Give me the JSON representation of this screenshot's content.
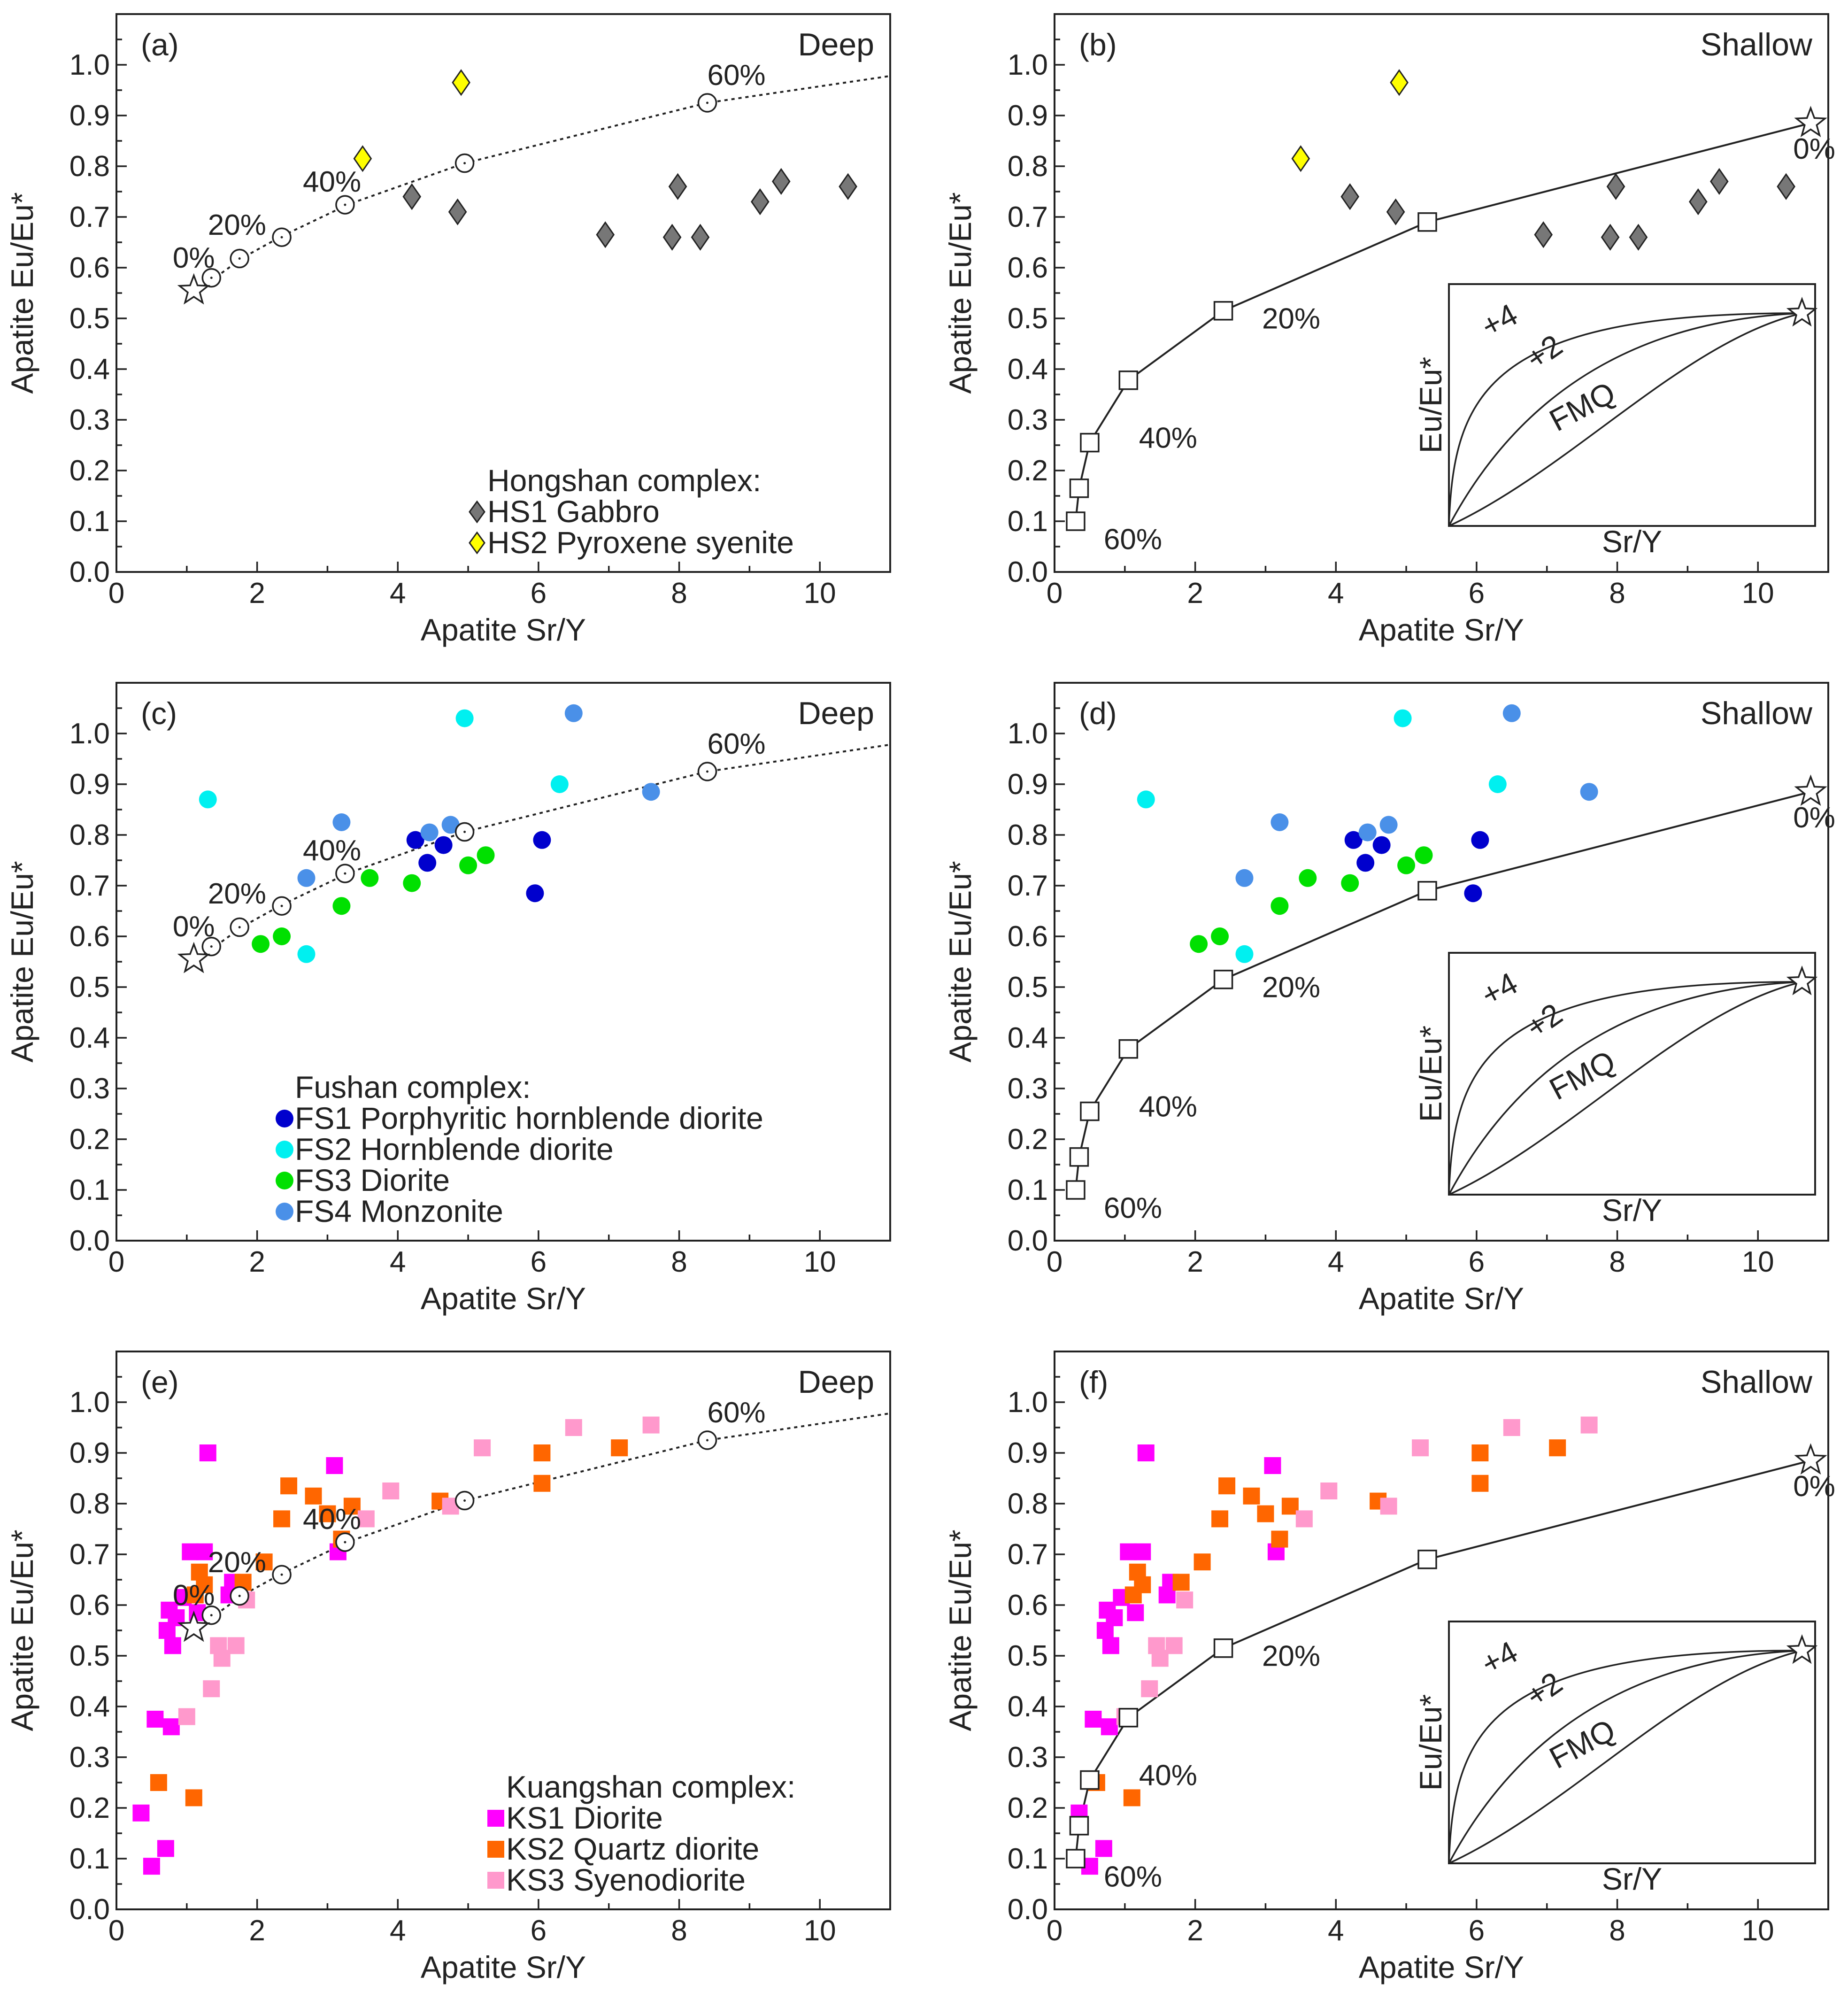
{
  "panels": [
    {
      "letter": "(a)",
      "tag": "Deep",
      "model": "deep",
      "xlabel": "Apatite Sr/Y",
      "ylabel": "Apatite Eu/Eu*",
      "xlim": [
        0,
        11
      ],
      "ylim": [
        0,
        1.1
      ],
      "legend_title": "Hongshan complex:",
      "legend_pos": "bottom-right",
      "groups": [
        {
          "name": "HS1 Gabbro",
          "marker": "diamond",
          "color": "#777777",
          "points": [
            [
              4.2,
              0.74
            ],
            [
              4.85,
              0.71
            ],
            [
              6.95,
              0.665
            ],
            [
              7.9,
              0.66
            ],
            [
              7.98,
              0.76
            ],
            [
              8.3,
              0.66
            ],
            [
              9.15,
              0.73
            ],
            [
              9.45,
              0.77
            ],
            [
              10.4,
              0.76
            ]
          ]
        },
        {
          "name": "HS2 Pyroxene syenite",
          "marker": "diamond",
          "color": "#ffff00",
          "points": [
            [
              3.5,
              0.815
            ],
            [
              4.9,
              0.965
            ]
          ]
        }
      ]
    },
    {
      "letter": "(b)",
      "tag": "Shallow",
      "model": "shallow",
      "xlabel": "Apatite Sr/Y",
      "ylabel": "Apatite Eu/Eu*",
      "xlim": [
        0,
        11
      ],
      "ylim": [
        0,
        1.1
      ],
      "legend_title": "",
      "legend_pos": "",
      "groups": [
        {
          "name": "HS1 Gabbro",
          "marker": "diamond",
          "color": "#777777",
          "points": [
            [
              4.2,
              0.74
            ],
            [
              4.85,
              0.71
            ],
            [
              6.95,
              0.665
            ],
            [
              7.9,
              0.66
            ],
            [
              7.98,
              0.76
            ],
            [
              8.3,
              0.66
            ],
            [
              9.15,
              0.73
            ],
            [
              9.45,
              0.77
            ],
            [
              10.4,
              0.76
            ]
          ]
        },
        {
          "name": "HS2 Pyroxene syenite",
          "marker": "diamond",
          "color": "#ffff00",
          "points": [
            [
              3.5,
              0.815
            ],
            [
              4.9,
              0.965
            ]
          ]
        }
      ]
    },
    {
      "letter": "(c)",
      "tag": "Deep",
      "model": "deep",
      "xlabel": "Apatite Sr/Y",
      "ylabel": "Apatite Eu/Eu*",
      "xlim": [
        0,
        11
      ],
      "ylim": [
        0,
        1.1
      ],
      "legend_title": "Fushan complex:",
      "legend_pos": "bottom-center",
      "groups": [
        {
          "name": "FS1 Porphyritic hornblende diorite",
          "marker": "circle",
          "color": "#0000cd",
          "points": [
            [
              4.25,
              0.79
            ],
            [
              4.42,
              0.745
            ],
            [
              4.65,
              0.78
            ],
            [
              5.95,
              0.685
            ],
            [
              6.05,
              0.79
            ]
          ]
        },
        {
          "name": "FS2 Hornblende diorite",
          "marker": "circle",
          "color": "#00f0f0",
          "points": [
            [
              1.3,
              0.87
            ],
            [
              2.7,
              0.565
            ],
            [
              4.95,
              1.03
            ],
            [
              6.3,
              0.9
            ]
          ]
        },
        {
          "name": "FS3 Diorite",
          "marker": "circle",
          "color": "#00e000",
          "points": [
            [
              2.05,
              0.585
            ],
            [
              2.35,
              0.6
            ],
            [
              3.2,
              0.66
            ],
            [
              3.6,
              0.715
            ],
            [
              4.2,
              0.705
            ],
            [
              5.0,
              0.74
            ],
            [
              5.25,
              0.76
            ]
          ]
        },
        {
          "name": "FS4 Monzonite",
          "marker": "circle",
          "color": "#4a90e8",
          "points": [
            [
              2.7,
              0.715
            ],
            [
              3.2,
              0.825
            ],
            [
              4.45,
              0.805
            ],
            [
              4.75,
              0.82
            ],
            [
              6.5,
              1.04
            ],
            [
              7.6,
              0.885
            ]
          ]
        }
      ]
    },
    {
      "letter": "(d)",
      "tag": "Shallow",
      "model": "shallow",
      "xlabel": "Apatite Sr/Y",
      "ylabel": "Apatite Eu/Eu*",
      "xlim": [
        0,
        11
      ],
      "ylim": [
        0,
        1.1
      ],
      "legend_title": "",
      "legend_pos": "",
      "groups": [
        {
          "name": "FS1 Porphyritic hornblende diorite",
          "marker": "circle",
          "color": "#0000cd",
          "points": [
            [
              4.25,
              0.79
            ],
            [
              4.42,
              0.745
            ],
            [
              4.65,
              0.78
            ],
            [
              5.95,
              0.685
            ],
            [
              6.05,
              0.79
            ]
          ]
        },
        {
          "name": "FS2 Hornblende diorite",
          "marker": "circle",
          "color": "#00f0f0",
          "points": [
            [
              1.3,
              0.87
            ],
            [
              2.7,
              0.565
            ],
            [
              4.95,
              1.03
            ],
            [
              6.3,
              0.9
            ]
          ]
        },
        {
          "name": "FS3 Diorite",
          "marker": "circle",
          "color": "#00e000",
          "points": [
            [
              2.05,
              0.585
            ],
            [
              2.35,
              0.6
            ],
            [
              3.2,
              0.66
            ],
            [
              3.6,
              0.715
            ],
            [
              4.2,
              0.705
            ],
            [
              5.0,
              0.74
            ],
            [
              5.25,
              0.76
            ]
          ]
        },
        {
          "name": "FS4 Monzonite",
          "marker": "circle",
          "color": "#4a90e8",
          "points": [
            [
              2.7,
              0.715
            ],
            [
              3.2,
              0.825
            ],
            [
              4.45,
              0.805
            ],
            [
              4.75,
              0.82
            ],
            [
              6.5,
              1.04
            ],
            [
              7.6,
              0.885
            ]
          ]
        }
      ]
    },
    {
      "letter": "(e)",
      "tag": "Deep",
      "model": "deep",
      "xlabel": "Apatite Sr/Y",
      "ylabel": "Apatite Eu/Eu*",
      "xlim": [
        0,
        11
      ],
      "ylim": [
        0,
        1.1
      ],
      "legend_title": "Kuangshan complex:",
      "legend_pos": "bottom-right",
      "groups": [
        {
          "name": "KS1 Diorite",
          "marker": "square",
          "color": "#ff00ff",
          "points": [
            [
              0.35,
              0.19
            ],
            [
              0.5,
              0.085
            ],
            [
              0.55,
              0.375
            ],
            [
              0.7,
              0.12
            ],
            [
              0.72,
              0.55
            ],
            [
              0.75,
              0.59
            ],
            [
              0.78,
              0.36
            ],
            [
              0.8,
              0.52
            ],
            [
              0.85,
              0.575
            ],
            [
              0.95,
              0.615
            ],
            [
              1.05,
              0.705
            ],
            [
              1.15,
              0.585
            ],
            [
              1.25,
              0.705
            ],
            [
              1.3,
              0.9
            ],
            [
              1.6,
              0.62
            ],
            [
              1.65,
              0.645
            ],
            [
              3.1,
              0.875
            ],
            [
              3.15,
              0.705
            ]
          ]
        },
        {
          "name": "KS2 Quartz diorite",
          "marker": "square",
          "color": "#ff6600",
          "points": [
            [
              0.6,
              0.25
            ],
            [
              1.1,
              0.22
            ],
            [
              1.12,
              0.62
            ],
            [
              1.18,
              0.665
            ],
            [
              1.25,
              0.64
            ],
            [
              1.8,
              0.645
            ],
            [
              2.1,
              0.685
            ],
            [
              2.35,
              0.77
            ],
            [
              2.45,
              0.835
            ],
            [
              2.8,
              0.815
            ],
            [
              3.0,
              0.78
            ],
            [
              3.35,
              0.795
            ],
            [
              3.2,
              0.73
            ],
            [
              4.6,
              0.805
            ],
            [
              6.05,
              0.84
            ],
            [
              6.05,
              0.9
            ],
            [
              7.15,
              0.91
            ]
          ]
        },
        {
          "name": "KS3 Syenodiorite",
          "marker": "square",
          "color": "#ff99cc",
          "points": [
            [
              1.0,
              0.38
            ],
            [
              1.35,
              0.435
            ],
            [
              1.45,
              0.52
            ],
            [
              1.5,
              0.495
            ],
            [
              1.7,
              0.52
            ],
            [
              1.85,
              0.61
            ],
            [
              3.55,
              0.77
            ],
            [
              3.9,
              0.825
            ],
            [
              4.75,
              0.795
            ],
            [
              5.2,
              0.91
            ],
            [
              6.5,
              0.95
            ],
            [
              7.6,
              0.955
            ]
          ]
        }
      ]
    },
    {
      "letter": "(f)",
      "tag": "Shallow",
      "model": "shallow",
      "xlabel": "Apatite Sr/Y",
      "ylabel": "Apatite Eu/Eu*",
      "xlim": [
        0,
        11
      ],
      "ylim": [
        0,
        1.1
      ],
      "legend_title": "",
      "legend_pos": "",
      "groups": [
        {
          "name": "KS1 Diorite",
          "marker": "square",
          "color": "#ff00ff",
          "points": [
            [
              0.35,
              0.19
            ],
            [
              0.5,
              0.085
            ],
            [
              0.55,
              0.375
            ],
            [
              0.7,
              0.12
            ],
            [
              0.72,
              0.55
            ],
            [
              0.75,
              0.59
            ],
            [
              0.78,
              0.36
            ],
            [
              0.8,
              0.52
            ],
            [
              0.85,
              0.575
            ],
            [
              0.95,
              0.615
            ],
            [
              1.05,
              0.705
            ],
            [
              1.15,
              0.585
            ],
            [
              1.25,
              0.705
            ],
            [
              1.3,
              0.9
            ],
            [
              1.6,
              0.62
            ],
            [
              1.65,
              0.645
            ],
            [
              3.1,
              0.875
            ],
            [
              3.15,
              0.705
            ]
          ]
        },
        {
          "name": "KS2 Quartz diorite",
          "marker": "square",
          "color": "#ff6600",
          "points": [
            [
              0.6,
              0.25
            ],
            [
              1.1,
              0.22
            ],
            [
              1.12,
              0.62
            ],
            [
              1.18,
              0.665
            ],
            [
              1.25,
              0.64
            ],
            [
              1.8,
              0.645
            ],
            [
              2.1,
              0.685
            ],
            [
              2.35,
              0.77
            ],
            [
              2.45,
              0.835
            ],
            [
              2.8,
              0.815
            ],
            [
              3.0,
              0.78
            ],
            [
              3.35,
              0.795
            ],
            [
              3.2,
              0.73
            ],
            [
              4.6,
              0.805
            ],
            [
              6.05,
              0.84
            ],
            [
              6.05,
              0.9
            ],
            [
              7.15,
              0.91
            ]
          ]
        },
        {
          "name": "KS3 Syenodiorite",
          "marker": "square",
          "color": "#ff99cc",
          "points": [
            [
              1.0,
              0.38
            ],
            [
              1.35,
              0.435
            ],
            [
              1.45,
              0.52
            ],
            [
              1.5,
              0.495
            ],
            [
              1.7,
              0.52
            ],
            [
              1.85,
              0.61
            ],
            [
              3.55,
              0.77
            ],
            [
              3.9,
              0.825
            ],
            [
              4.75,
              0.795
            ],
            [
              5.2,
              0.91
            ],
            [
              6.5,
              0.95
            ],
            [
              7.6,
              0.955
            ]
          ]
        }
      ]
    }
  ],
  "models": {
    "deep": {
      "line": "dotted",
      "curve": [
        [
          1.25,
          0.565
        ],
        [
          1.8,
          0.62
        ],
        [
          2.35,
          0.662
        ],
        [
          3.3,
          0.725
        ],
        [
          4.95,
          0.806
        ],
        [
          8.4,
          0.925
        ],
        [
          11.0,
          0.978
        ]
      ],
      "steps": [
        [
          1.35,
          0.58
        ],
        [
          1.75,
          0.618
        ],
        [
          2.35,
          0.66
        ],
        [
          3.25,
          0.724
        ],
        [
          4.95,
          0.806
        ],
        [
          8.4,
          0.925
        ]
      ],
      "start": [
        1.1,
        0.555
      ],
      "labels": [
        {
          "text": "0%",
          "at": [
            0.8,
            0.6
          ]
        },
        {
          "text": "20%",
          "at": [
            1.3,
            0.665
          ]
        },
        {
          "text": "40%",
          "at": [
            2.65,
            0.75
          ]
        },
        {
          "text": "60%",
          "at": [
            8.4,
            0.96
          ]
        }
      ]
    },
    "shallow": {
      "line": "solid",
      "curve": [
        [
          0.3,
          0.1
        ],
        [
          0.35,
          0.165
        ],
        [
          0.5,
          0.255
        ],
        [
          1.05,
          0.378
        ],
        [
          2.4,
          0.515
        ],
        [
          5.3,
          0.69
        ],
        [
          10.75,
          0.885
        ]
      ],
      "steps": [
        [
          0.3,
          0.1
        ],
        [
          0.35,
          0.165
        ],
        [
          0.5,
          0.255
        ],
        [
          1.05,
          0.378
        ],
        [
          2.4,
          0.515
        ],
        [
          5.3,
          0.69
        ]
      ],
      "start": [
        10.75,
        0.885
      ],
      "labels": [
        {
          "text": "0%",
          "at": [
            10.8,
            0.815
          ]
        },
        {
          "text": "20%",
          "at": [
            2.95,
            0.48
          ]
        },
        {
          "text": "40%",
          "at": [
            1.2,
            0.245
          ]
        },
        {
          "text": "60%",
          "at": [
            0.7,
            0.045
          ]
        }
      ]
    }
  },
  "inset": {
    "xlabel": "Sr/Y",
    "ylabel": "Eu/Eu*",
    "curves": [
      {
        "label": "+4"
      },
      {
        "label": "+2"
      },
      {
        "label": "FMQ"
      }
    ]
  }
}
